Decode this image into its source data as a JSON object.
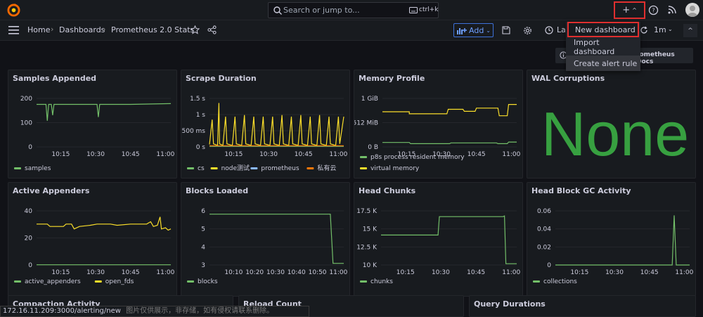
{
  "search": {
    "placeholder": "Search or jump to...",
    "shortcut": "ctrl+k"
  },
  "topbar": {
    "plus_label": "+"
  },
  "breadcrumb": [
    "Home",
    "Dashboards",
    "Prometheus 2.0 Stats"
  ],
  "toolbar": {
    "add_label": "Add",
    "time_label": "La",
    "interval": "1m"
  },
  "dropdown": {
    "items": [
      "New dashboard",
      "Import dashboard",
      "Create alert rule"
    ]
  },
  "docs_link": "rometheus Docs",
  "colors": {
    "green": "#73bf69",
    "yellow": "#fade2a",
    "blue": "#8ab8ff",
    "orange": "#ff780a",
    "stat_green": "#37a040",
    "accent": "#3d71d9",
    "highlight": "#e02f2f"
  },
  "panels": [
    {
      "title": "Samples Appended",
      "yticks": [
        "200",
        "100",
        "0"
      ],
      "xticks": [
        "10:15",
        "10:30",
        "10:45",
        "11:00"
      ],
      "legend": [
        {
          "label": "samples",
          "color": "#73bf69"
        }
      ],
      "series": [
        {
          "color": "#73bf69",
          "points": [
            [
              0,
              228
            ],
            [
              0.07,
              228
            ],
            [
              0.08,
              140
            ],
            [
              0.09,
              228
            ],
            [
              0.11,
              228
            ],
            [
              0.12,
              170
            ],
            [
              0.13,
              228
            ],
            [
              0.45,
              228
            ],
            [
              0.46,
              160
            ],
            [
              0.47,
              228
            ],
            [
              0.7,
              228
            ],
            [
              1,
              232
            ]
          ]
        }
      ],
      "ymin": 0,
      "ymax": 260
    },
    {
      "title": "Scrape Duration",
      "yticks": [
        "1.5 s",
        "1 s",
        "500 ms",
        "0 s"
      ],
      "xticks": [
        "10:15",
        "10:30",
        "10:45",
        "11:00"
      ],
      "legend": [
        {
          "label": "cs",
          "color": "#73bf69"
        },
        {
          "label": "node测试",
          "color": "#fade2a"
        },
        {
          "label": "prometheus",
          "color": "#8ab8ff"
        },
        {
          "label": "私有云",
          "color": "#ff780a"
        }
      ],
      "ymin": 0,
      "ymax": 1.6,
      "series": [
        {
          "color": "#fade2a",
          "points": [
            [
              0,
              0.08
            ],
            [
              0.02,
              0.9
            ],
            [
              0.03,
              0.1
            ],
            [
              0.06,
              0.05
            ],
            [
              0.07,
              1.45
            ],
            [
              0.075,
              0.1
            ],
            [
              0.1,
              0.05
            ],
            [
              0.12,
              1.0
            ],
            [
              0.13,
              0.1
            ],
            [
              0.17,
              0.05
            ],
            [
              0.19,
              1.0
            ],
            [
              0.2,
              0.1
            ],
            [
              0.24,
              0.05
            ],
            [
              0.26,
              1.05
            ],
            [
              0.27,
              0.1
            ],
            [
              0.31,
              0.05
            ],
            [
              0.33,
              1.0
            ],
            [
              0.34,
              0.1
            ],
            [
              0.38,
              0.05
            ],
            [
              0.4,
              1.0
            ],
            [
              0.41,
              0.1
            ],
            [
              0.45,
              0.05
            ],
            [
              0.47,
              1.0
            ],
            [
              0.48,
              0.1
            ],
            [
              0.52,
              0.05
            ],
            [
              0.54,
              1.05
            ],
            [
              0.55,
              0.1
            ],
            [
              0.59,
              0.05
            ],
            [
              0.61,
              1.0
            ],
            [
              0.62,
              0.1
            ],
            [
              0.66,
              0.05
            ],
            [
              0.68,
              1.05
            ],
            [
              0.69,
              0.1
            ],
            [
              0.73,
              0.05
            ],
            [
              0.75,
              1.0
            ],
            [
              0.76,
              0.1
            ],
            [
              0.8,
              0.05
            ],
            [
              0.82,
              1.05
            ],
            [
              0.83,
              0.1
            ],
            [
              0.87,
              0.05
            ],
            [
              0.89,
              1.0
            ],
            [
              0.9,
              0.1
            ],
            [
              0.94,
              0.05
            ],
            [
              0.96,
              1.0
            ],
            [
              0.97,
              0.1
            ],
            [
              1,
              1.0
            ]
          ]
        },
        {
          "color": "#73bf69",
          "points": [
            [
              0,
              0.02
            ],
            [
              1,
              0.02
            ]
          ]
        },
        {
          "color": "#ff780a",
          "points": [
            [
              0,
              0.04
            ],
            [
              1,
              0.04
            ]
          ]
        }
      ]
    },
    {
      "title": "Memory Profile",
      "yticks": [
        "1 GiB",
        "512 MiB",
        "0 B"
      ],
      "xticks": [
        "10:15",
        "10:30",
        "10:45",
        "11:00"
      ],
      "legend": [
        {
          "label": "p8s process resident memory",
          "color": "#73bf69"
        },
        {
          "label": "virtual memory",
          "color": "#fade2a"
        }
      ],
      "ymin": 0,
      "ymax": 1200,
      "series": [
        {
          "color": "#fade2a",
          "points": [
            [
              0,
              870
            ],
            [
              0.2,
              870
            ],
            [
              0.2,
              820
            ],
            [
              0.48,
              820
            ],
            [
              0.49,
              930
            ],
            [
              0.6,
              930
            ],
            [
              0.61,
              880
            ],
            [
              0.69,
              880
            ],
            [
              0.7,
              960
            ],
            [
              0.86,
              960
            ],
            [
              0.87,
              770
            ],
            [
              0.93,
              770
            ],
            [
              0.94,
              1050
            ],
            [
              1,
              1050
            ]
          ]
        },
        {
          "color": "#73bf69",
          "points": [
            [
              0,
              110
            ],
            [
              0.2,
              110
            ],
            [
              0.21,
              80
            ],
            [
              0.5,
              80
            ],
            [
              0.51,
              100
            ],
            [
              0.85,
              100
            ],
            [
              0.86,
              80
            ],
            [
              0.93,
              80
            ],
            [
              0.94,
              120
            ],
            [
              1,
              120
            ]
          ]
        }
      ]
    },
    {
      "title": "WAL Corruptions",
      "value": "None"
    },
    {
      "title": "Active Appenders",
      "yticks": [
        "40",
        "20",
        "0"
      ],
      "xticks": [
        "10:15",
        "10:30",
        "10:45",
        "11:00"
      ],
      "legend": [
        {
          "label": "active_appenders",
          "color": "#73bf69"
        },
        {
          "label": "open_fds",
          "color": "#fade2a"
        }
      ],
      "ymin": 0,
      "ymax": 45,
      "series": [
        {
          "color": "#fade2a",
          "points": [
            [
              0,
              34
            ],
            [
              0.08,
              34
            ],
            [
              0.1,
              32
            ],
            [
              0.2,
              32
            ],
            [
              0.22,
              34
            ],
            [
              0.26,
              34
            ],
            [
              0.28,
              30
            ],
            [
              0.32,
              32
            ],
            [
              0.4,
              33
            ],
            [
              0.45,
              34
            ],
            [
              0.55,
              34
            ],
            [
              0.6,
              33
            ],
            [
              0.7,
              34
            ],
            [
              0.82,
              34
            ],
            [
              0.85,
              36
            ],
            [
              0.87,
              32
            ],
            [
              0.9,
              33
            ],
            [
              0.92,
              40
            ],
            [
              0.93,
              30
            ],
            [
              0.96,
              31
            ],
            [
              0.98,
              29
            ],
            [
              1,
              30
            ]
          ]
        },
        {
          "color": "#73bf69",
          "points": [
            [
              0,
              0.2
            ],
            [
              1,
              0.2
            ]
          ]
        }
      ]
    },
    {
      "title": "Blocks Loaded",
      "yticks": [
        "6",
        "5",
        "4",
        "3"
      ],
      "xticks": [
        "10:10",
        "10:20",
        "10:30",
        "10:40",
        "10:50",
        "11:00"
      ],
      "legend": [
        {
          "label": "blocks",
          "color": "#73bf69"
        }
      ],
      "ymin": 2.9,
      "ymax": 6.2,
      "series": [
        {
          "color": "#73bf69",
          "points": [
            [
              0,
              6
            ],
            [
              0.9,
              6
            ],
            [
              0.92,
              3
            ],
            [
              1,
              3
            ]
          ]
        }
      ]
    },
    {
      "title": "Head Chunks",
      "yticks": [
        "17.5 K",
        "15 K",
        "12.5 K",
        "10 K"
      ],
      "xticks": [
        "10:15",
        "10:30",
        "10:45",
        "11:00"
      ],
      "legend": [
        {
          "label": "chunks",
          "color": "#73bf69"
        }
      ],
      "ymin": 9800,
      "ymax": 18300,
      "series": [
        {
          "color": "#73bf69",
          "points": [
            [
              0,
              14500
            ],
            [
              0.42,
              14500
            ],
            [
              0.43,
              17400
            ],
            [
              0.9,
              17400
            ],
            [
              0.91,
              17500
            ],
            [
              0.92,
              10000
            ],
            [
              1,
              10000
            ]
          ]
        }
      ]
    },
    {
      "title": "Head Block GC Activity",
      "yticks": [
        "0.06",
        "0.04",
        "0.02",
        "0"
      ],
      "xticks": [
        "10:15",
        "10:30",
        "10:45",
        "11:00"
      ],
      "legend": [
        {
          "label": "collections",
          "color": "#73bf69"
        }
      ],
      "ymin": 0,
      "ymax": 0.072,
      "series": [
        {
          "color": "#73bf69",
          "points": [
            [
              0,
              0
            ],
            [
              0.87,
              0
            ],
            [
              0.885,
              0.066
            ],
            [
              0.9,
              0
            ],
            [
              1,
              0
            ]
          ]
        }
      ]
    },
    {
      "title": "Compaction Activity"
    },
    {
      "title": "Reload Count"
    },
    {
      "title": "Query Durations"
    }
  ],
  "status_url": "172.16.11.209:3000/alerting/new",
  "status_overlay": "图片仅供展示，非存储，如有侵权请联系删除。"
}
